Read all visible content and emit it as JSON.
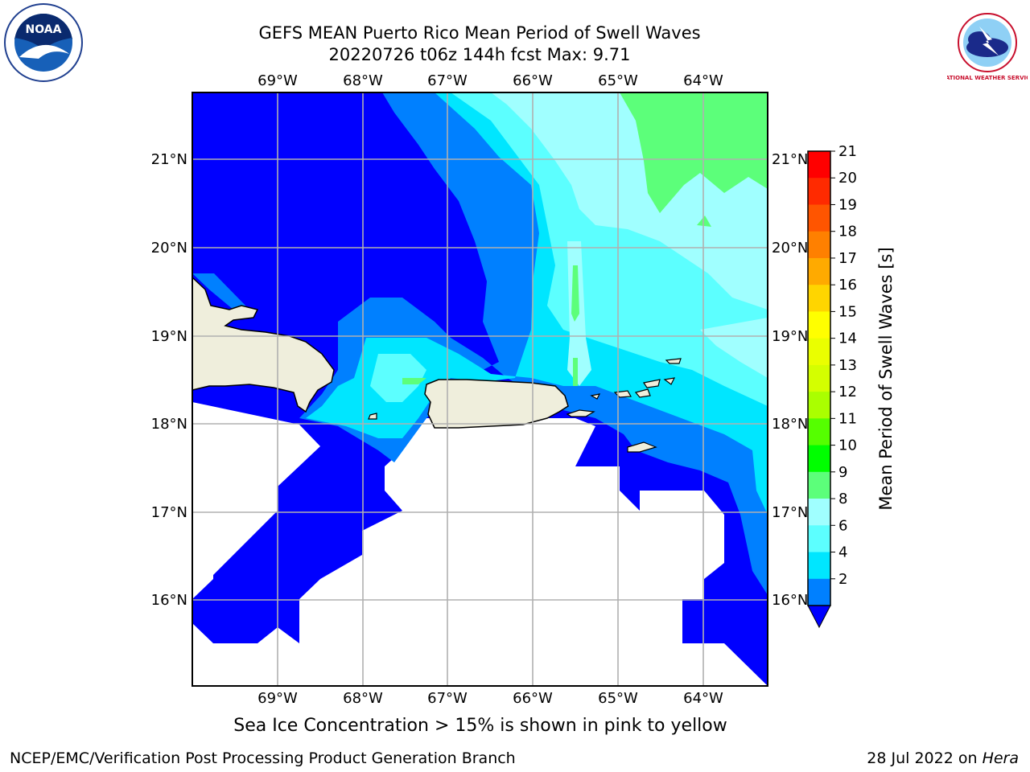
{
  "title": {
    "line1": "GEFS MEAN Puerto Rico Mean Period of Swell Waves",
    "line2": "20220726 t06z 144h fcst   Max: 9.71"
  },
  "logos": {
    "left_text": "NOAA",
    "right_text": "NATIONAL WEATHER SERVICE"
  },
  "map": {
    "lon_labels": [
      "69°W",
      "68°W",
      "67°W",
      "66°W",
      "65°W",
      "64°W"
    ],
    "lat_labels": [
      "21°N",
      "20°N",
      "19°N",
      "18°N",
      "17°N",
      "16°N"
    ],
    "colors": {
      "c2_4": "#0000ff",
      "c4_6": "#0080ff",
      "c6_8": "#00e6ff",
      "c8_9": "#5cffff",
      "c9_10": "#a0ffff",
      "c10_11": "#5cff7a",
      "land": "#efeedc",
      "grid": "#b0b0b0"
    }
  },
  "colorbar": {
    "label": "Mean Period of Swell Waves [s]",
    "ticks": [
      "21",
      "20",
      "19",
      "18",
      "17",
      "16",
      "15",
      "14",
      "13",
      "12",
      "11",
      "10",
      "9",
      "8",
      "6",
      "4",
      "2"
    ],
    "colors": [
      "#ff0000",
      "#ff2a00",
      "#ff5500",
      "#ff8000",
      "#ffaa00",
      "#ffd500",
      "#ffff00",
      "#eaff00",
      "#d4ff00",
      "#aaff00",
      "#55ff00",
      "#00ff00",
      "#5cff7a",
      "#a0ffff",
      "#5cffff",
      "#00e6ff",
      "#0080ff"
    ],
    "extend_color": "#0000ff"
  },
  "note": "Sea Ice Concentration > 15% is shown in pink to yellow",
  "footer": {
    "left": "NCEP/EMC/Verification Post Processing Product Generation Branch",
    "right_prefix": "28 Jul 2022 on ",
    "right_host": "Hera"
  }
}
